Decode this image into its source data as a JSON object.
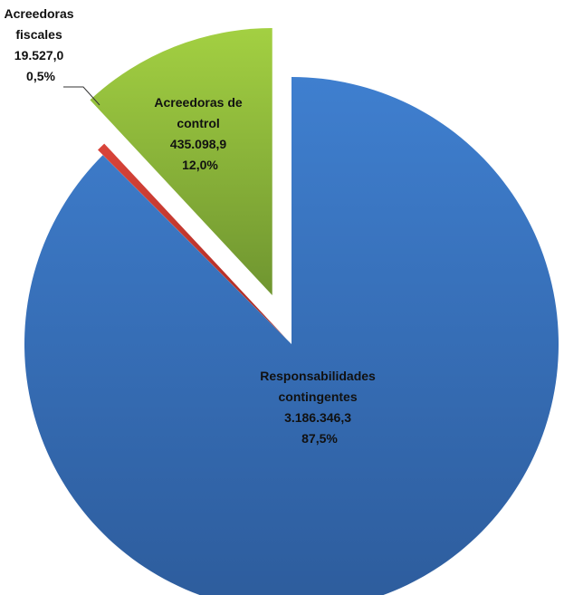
{
  "chart_data": {
    "type": "pie",
    "exploded": true,
    "series": [
      {
        "name": "Responsabilidades contingentes",
        "label_lines": [
          "Responsabilidades",
          "contingentes",
          "3.186.346,3",
          "87,5%"
        ],
        "value": 3186346.3,
        "percent": 87.5,
        "color": "#3a6fb9"
      },
      {
        "name": "Acreedoras fiscales",
        "label_lines": [
          "Acreedoras",
          "fiscales",
          "19.527,0",
          "0,5%"
        ],
        "value": 19527.0,
        "percent": 0.5,
        "color": "#c0392b"
      },
      {
        "name": "Acreedoras de control",
        "label_lines": [
          "Acreedoras de",
          "control",
          "435.098,9",
          "12,0%"
        ],
        "value": 435098.9,
        "percent": 12.0,
        "color": "#8cb83a"
      }
    ]
  }
}
